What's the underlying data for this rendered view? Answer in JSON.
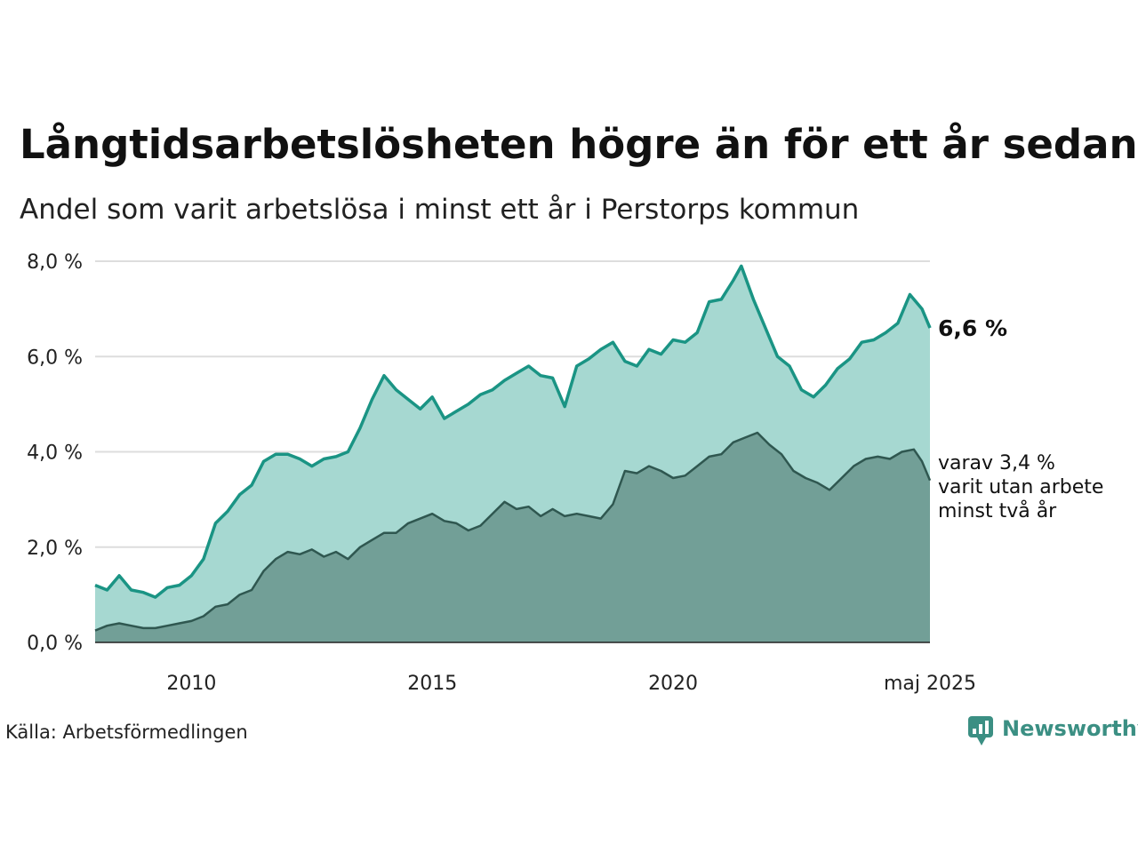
{
  "header": {
    "title": "Långtidsarbetslösheten högre än för ett år sedan",
    "subtitle": "Andel som varit arbetslösa i minst ett år i Perstorps kommun"
  },
  "footer": {
    "source": "Källa: Arbetsförmedlingen",
    "brand": "Newsworthy"
  },
  "colors": {
    "series1_line": "#1a9484",
    "series1_fill": "#a6d8d1",
    "series2_line": "#2f5750",
    "series2_fill": "#729f97",
    "grid": "#dddddd",
    "brand": "#3b8f83"
  },
  "chart_data": {
    "type": "area",
    "xlim": [
      "2008-01",
      "2025-05"
    ],
    "ylim": [
      0,
      8
    ],
    "ytick_labels": [
      "0,0 %",
      "2,0 %",
      "4,0 %",
      "6,0 %",
      "8,0 %"
    ],
    "ytick_values": [
      0,
      2,
      4,
      6,
      8
    ],
    "xtick_labels": [
      "2010",
      "2015",
      "2020",
      "maj 2025"
    ],
    "xtick_positions": [
      "2010-01",
      "2015-01",
      "2020-01",
      "2025-05"
    ],
    "grid": "horizontal",
    "end_label": "6,6 %",
    "annotation_lines": [
      "varav 3,4 %",
      "varit utan arbete",
      "minst två år"
    ],
    "series": [
      {
        "key": "minst-ett-ar",
        "values": [
          [
            "2008-01",
            1.2
          ],
          [
            "2008-04",
            1.1
          ],
          [
            "2008-07",
            1.4
          ],
          [
            "2008-10",
            1.1
          ],
          [
            "2009-01",
            1.05
          ],
          [
            "2009-04",
            0.95
          ],
          [
            "2009-07",
            1.15
          ],
          [
            "2009-10",
            1.2
          ],
          [
            "2010-01",
            1.4
          ],
          [
            "2010-04",
            1.75
          ],
          [
            "2010-07",
            2.5
          ],
          [
            "2010-10",
            2.75
          ],
          [
            "2011-01",
            3.1
          ],
          [
            "2011-04",
            3.3
          ],
          [
            "2011-07",
            3.8
          ],
          [
            "2011-10",
            3.95
          ],
          [
            "2012-01",
            3.95
          ],
          [
            "2012-04",
            3.85
          ],
          [
            "2012-07",
            3.7
          ],
          [
            "2012-10",
            3.85
          ],
          [
            "2013-01",
            3.9
          ],
          [
            "2013-04",
            4.0
          ],
          [
            "2013-07",
            4.5
          ],
          [
            "2013-10",
            5.1
          ],
          [
            "2014-01",
            5.6
          ],
          [
            "2014-04",
            5.3
          ],
          [
            "2014-07",
            5.1
          ],
          [
            "2014-10",
            4.9
          ],
          [
            "2015-01",
            5.15
          ],
          [
            "2015-04",
            4.7
          ],
          [
            "2015-07",
            4.85
          ],
          [
            "2015-10",
            5.0
          ],
          [
            "2016-01",
            5.2
          ],
          [
            "2016-04",
            5.3
          ],
          [
            "2016-07",
            5.5
          ],
          [
            "2016-10",
            5.65
          ],
          [
            "2017-01",
            5.8
          ],
          [
            "2017-04",
            5.6
          ],
          [
            "2017-07",
            5.55
          ],
          [
            "2017-10",
            4.95
          ],
          [
            "2018-01",
            5.8
          ],
          [
            "2018-04",
            5.95
          ],
          [
            "2018-07",
            6.15
          ],
          [
            "2018-10",
            6.3
          ],
          [
            "2019-01",
            5.9
          ],
          [
            "2019-04",
            5.8
          ],
          [
            "2019-07",
            6.15
          ],
          [
            "2019-10",
            6.05
          ],
          [
            "2020-01",
            6.35
          ],
          [
            "2020-04",
            6.3
          ],
          [
            "2020-07",
            6.5
          ],
          [
            "2020-10",
            7.15
          ],
          [
            "2021-01",
            7.2
          ],
          [
            "2021-04",
            7.6
          ],
          [
            "2021-06",
            7.9
          ],
          [
            "2021-09",
            7.2
          ],
          [
            "2021-12",
            6.6
          ],
          [
            "2022-03",
            6.0
          ],
          [
            "2022-06",
            5.8
          ],
          [
            "2022-09",
            5.3
          ],
          [
            "2022-12",
            5.15
          ],
          [
            "2023-03",
            5.4
          ],
          [
            "2023-06",
            5.75
          ],
          [
            "2023-09",
            5.95
          ],
          [
            "2023-12",
            6.3
          ],
          [
            "2024-03",
            6.35
          ],
          [
            "2024-06",
            6.5
          ],
          [
            "2024-09",
            6.7
          ],
          [
            "2024-12",
            7.3
          ],
          [
            "2025-03",
            7.0
          ],
          [
            "2025-05",
            6.6
          ]
        ]
      },
      {
        "key": "minst-tva-ar",
        "values": [
          [
            "2008-01",
            0.25
          ],
          [
            "2008-04",
            0.35
          ],
          [
            "2008-07",
            0.4
          ],
          [
            "2008-10",
            0.35
          ],
          [
            "2009-01",
            0.3
          ],
          [
            "2009-04",
            0.3
          ],
          [
            "2009-07",
            0.35
          ],
          [
            "2009-10",
            0.4
          ],
          [
            "2010-01",
            0.45
          ],
          [
            "2010-04",
            0.55
          ],
          [
            "2010-07",
            0.75
          ],
          [
            "2010-10",
            0.8
          ],
          [
            "2011-01",
            1.0
          ],
          [
            "2011-04",
            1.1
          ],
          [
            "2011-07",
            1.5
          ],
          [
            "2011-10",
            1.75
          ],
          [
            "2012-01",
            1.9
          ],
          [
            "2012-04",
            1.85
          ],
          [
            "2012-07",
            1.95
          ],
          [
            "2012-10",
            1.8
          ],
          [
            "2013-01",
            1.9
          ],
          [
            "2013-04",
            1.75
          ],
          [
            "2013-07",
            2.0
          ],
          [
            "2013-10",
            2.15
          ],
          [
            "2014-01",
            2.3
          ],
          [
            "2014-04",
            2.3
          ],
          [
            "2014-07",
            2.5
          ],
          [
            "2014-10",
            2.6
          ],
          [
            "2015-01",
            2.7
          ],
          [
            "2015-04",
            2.55
          ],
          [
            "2015-07",
            2.5
          ],
          [
            "2015-10",
            2.35
          ],
          [
            "2016-01",
            2.45
          ],
          [
            "2016-04",
            2.7
          ],
          [
            "2016-07",
            2.95
          ],
          [
            "2016-10",
            2.8
          ],
          [
            "2017-01",
            2.85
          ],
          [
            "2017-04",
            2.65
          ],
          [
            "2017-07",
            2.8
          ],
          [
            "2017-10",
            2.65
          ],
          [
            "2018-01",
            2.7
          ],
          [
            "2018-04",
            2.65
          ],
          [
            "2018-07",
            2.6
          ],
          [
            "2018-10",
            2.9
          ],
          [
            "2019-01",
            3.6
          ],
          [
            "2019-04",
            3.55
          ],
          [
            "2019-07",
            3.7
          ],
          [
            "2019-10",
            3.6
          ],
          [
            "2020-01",
            3.45
          ],
          [
            "2020-04",
            3.5
          ],
          [
            "2020-07",
            3.7
          ],
          [
            "2020-10",
            3.9
          ],
          [
            "2021-01",
            3.95
          ],
          [
            "2021-04",
            4.2
          ],
          [
            "2021-07",
            4.3
          ],
          [
            "2021-10",
            4.4
          ],
          [
            "2022-01",
            4.15
          ],
          [
            "2022-04",
            3.95
          ],
          [
            "2022-07",
            3.6
          ],
          [
            "2022-10",
            3.45
          ],
          [
            "2023-01",
            3.35
          ],
          [
            "2023-04",
            3.2
          ],
          [
            "2023-07",
            3.45
          ],
          [
            "2023-10",
            3.7
          ],
          [
            "2024-01",
            3.85
          ],
          [
            "2024-04",
            3.9
          ],
          [
            "2024-07",
            3.85
          ],
          [
            "2024-10",
            4.0
          ],
          [
            "2025-01",
            4.05
          ],
          [
            "2025-03",
            3.8
          ],
          [
            "2025-05",
            3.4
          ]
        ]
      }
    ]
  }
}
